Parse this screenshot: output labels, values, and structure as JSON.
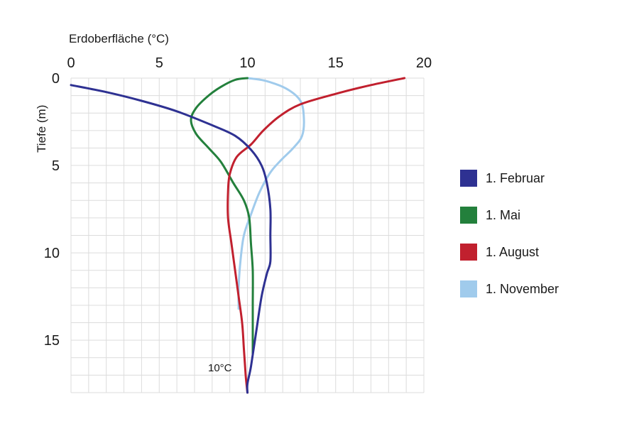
{
  "chart_data": {
    "type": "line",
    "xlabel": "Erdoberfläche (°C)",
    "ylabel": "Tiefe (m)",
    "xlim": [
      0,
      20
    ],
    "ylim": [
      0,
      18
    ],
    "x_ticks": [
      "0",
      "5",
      "10",
      "15",
      "20"
    ],
    "y_ticks": [
      "0",
      "5",
      "10",
      "15"
    ],
    "grid": true,
    "legend_position": "right",
    "annotation": {
      "text": "10°C",
      "x": 10,
      "y": 16.5
    },
    "series": [
      {
        "name": "1. Februar",
        "color": "#2e3192",
        "points": [
          [
            0,
            0.4
          ],
          [
            2,
            0.8
          ],
          [
            4,
            1.3
          ],
          [
            6,
            1.9
          ],
          [
            8,
            2.7
          ],
          [
            9.3,
            3.3
          ],
          [
            10.2,
            4.1
          ],
          [
            10.8,
            5
          ],
          [
            11.1,
            6
          ],
          [
            11.3,
            7.5
          ],
          [
            11.3,
            9
          ],
          [
            11.3,
            10.5
          ],
          [
            11.1,
            11.2
          ],
          [
            10.8,
            12.5
          ],
          [
            10.5,
            14.5
          ],
          [
            10.2,
            16.5
          ],
          [
            10,
            17.5
          ],
          [
            10,
            18
          ]
        ]
      },
      {
        "name": "1. Mai",
        "color": "#23803c",
        "points": [
          [
            10,
            0
          ],
          [
            9.3,
            0.1
          ],
          [
            8.5,
            0.5
          ],
          [
            7.8,
            1
          ],
          [
            7.1,
            1.7
          ],
          [
            6.8,
            2.4
          ],
          [
            7.1,
            3.2
          ],
          [
            7.8,
            4
          ],
          [
            8.5,
            4.8
          ],
          [
            9.2,
            6
          ],
          [
            9.8,
            7
          ],
          [
            10.1,
            8
          ],
          [
            10.2,
            9.5
          ],
          [
            10.3,
            11
          ],
          [
            10.3,
            13
          ],
          [
            10.3,
            14.5
          ],
          [
            10.3,
            15.8
          ]
        ]
      },
      {
        "name": "1. August",
        "color": "#c1202e",
        "points": [
          [
            18.9,
            0
          ],
          [
            17,
            0.4
          ],
          [
            15,
            0.9
          ],
          [
            13,
            1.5
          ],
          [
            11.8,
            2.2
          ],
          [
            10.9,
            3
          ],
          [
            10.2,
            3.8
          ],
          [
            9.4,
            4.5
          ],
          [
            9,
            5.5
          ],
          [
            8.9,
            6.5
          ],
          [
            8.9,
            8
          ],
          [
            9.1,
            9.5
          ],
          [
            9.3,
            11
          ],
          [
            9.5,
            12.5
          ],
          [
            9.7,
            14
          ],
          [
            9.8,
            15.5
          ],
          [
            9.9,
            17
          ],
          [
            10,
            18
          ]
        ]
      },
      {
        "name": "1. November",
        "color": "#a0cbec",
        "points": [
          [
            10,
            0
          ],
          [
            11,
            0.15
          ],
          [
            12.2,
            0.6
          ],
          [
            13,
            1.3
          ],
          [
            13.2,
            2.3
          ],
          [
            13.1,
            3.3
          ],
          [
            12.6,
            4
          ],
          [
            11.9,
            4.7
          ],
          [
            11.3,
            5.4
          ],
          [
            10.7,
            6.5
          ],
          [
            10.2,
            7.8
          ],
          [
            9.8,
            9
          ],
          [
            9.6,
            10.5
          ],
          [
            9.5,
            12
          ],
          [
            9.5,
            13.2
          ]
        ]
      }
    ]
  }
}
